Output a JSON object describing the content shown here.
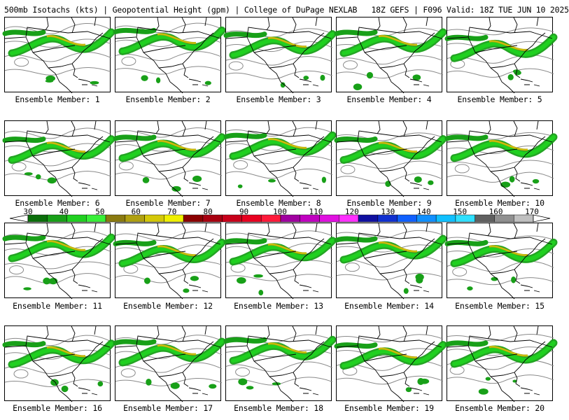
{
  "header": {
    "title": "500mb Isotachs (kts) | Geopotential Height (gpm) | College of DuPage NEXLAB   18Z GEFS | F096 Valid: 18Z TUE JUN 10 2025"
  },
  "panels": [
    {
      "label": "Ensemble Member: 1"
    },
    {
      "label": "Ensemble Member: 2"
    },
    {
      "label": "Ensemble Member: 3"
    },
    {
      "label": "Ensemble Member: 4"
    },
    {
      "label": "Ensemble Member: 5"
    },
    {
      "label": "Ensemble Member: 6"
    },
    {
      "label": "Ensemble Member: 7"
    },
    {
      "label": "Ensemble Member: 8"
    },
    {
      "label": "Ensemble Member: 9"
    },
    {
      "label": "Ensemble Member: 10"
    },
    {
      "label": "Ensemble Member: 11"
    },
    {
      "label": "Ensemble Member: 12"
    },
    {
      "label": "Ensemble Member: 13"
    },
    {
      "label": "Ensemble Member: 14"
    },
    {
      "label": "Ensemble Member: 15"
    },
    {
      "label": "Ensemble Member: 16"
    },
    {
      "label": "Ensemble Member: 17"
    },
    {
      "label": "Ensemble Member: 18"
    },
    {
      "label": "Ensemble Member: 19"
    },
    {
      "label": "Ensemble Member: 20"
    }
  ],
  "colorbar": {
    "labels": [
      "30",
      "40",
      "50",
      "60",
      "70",
      "80",
      "90",
      "100",
      "110",
      "120",
      "130",
      "140",
      "150",
      "160",
      "170"
    ],
    "colors": [
      "#0a6e0a",
      "#18a018",
      "#20d020",
      "#38f038",
      "#8a7a10",
      "#b0a010",
      "#d4c808",
      "#f0f000",
      "#8b0000",
      "#a80010",
      "#c8001a",
      "#e80020",
      "#ff1a3a",
      "#a000a0",
      "#c000c0",
      "#e010e0",
      "#ff30ff",
      "#1010a0",
      "#1030d0",
      "#1060ff",
      "#1090ff",
      "#10c0ff",
      "#30e0ff",
      "#606060",
      "#909090",
      "#c0c0c0"
    ]
  }
}
